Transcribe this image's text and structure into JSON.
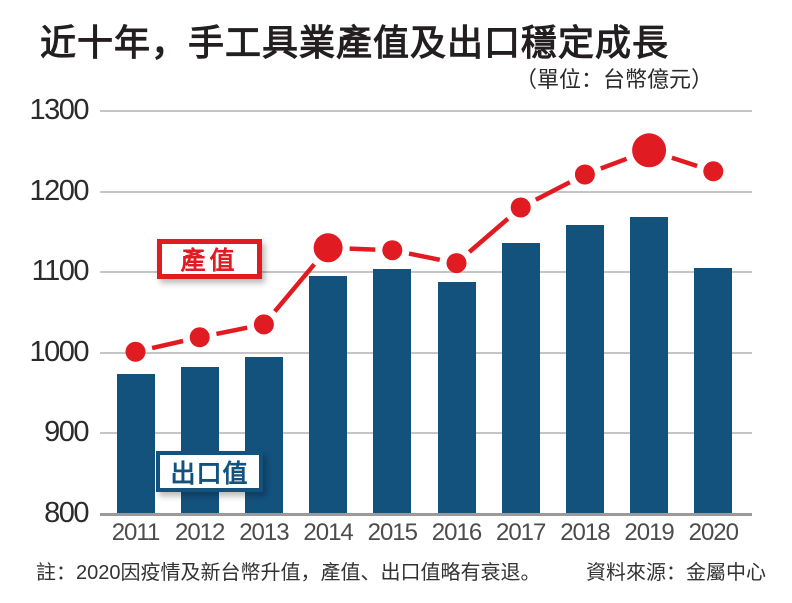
{
  "title": "近十年，手工具業產值及出口穩定成長",
  "subtitle": "（單位：台幣億元）",
  "labels": {
    "production": "產值",
    "export": "出口值"
  },
  "footer": {
    "note": "註：2020因疫情及新台幣升值，產值、出口值略有衰退。",
    "source": "資料來源：金屬中心"
  },
  "colors": {
    "bar": "#14527e",
    "line": "#e11b22",
    "grid": "#c5c5c5",
    "axis": "#9a9a9a",
    "title_text": "#231f20",
    "y_tick_text": "#2b2b2b",
    "x_tick_text": "#4c4c4c"
  },
  "chart_data": {
    "type": "bar",
    "subtype": "bar-and-line-combo",
    "title": "近十年，手工具業產值及出口穩定成長",
    "unit": "台幣億元",
    "categories": [
      "2011",
      "2012",
      "2013",
      "2014",
      "2015",
      "2016",
      "2017",
      "2018",
      "2019",
      "2020"
    ],
    "series": [
      {
        "name": "產值",
        "type": "line",
        "color": "#e11b22",
        "values": [
          1000,
          1018,
          1034,
          1129,
          1126,
          1110,
          1179,
          1220,
          1250,
          1224
        ],
        "emphasized_points": {
          "2014": "medium",
          "2019": "large"
        }
      },
      {
        "name": "出口值",
        "type": "bar",
        "color": "#14527e",
        "values": [
          973,
          981,
          994,
          1094,
          1103,
          1087,
          1135,
          1157,
          1167,
          1104
        ]
      }
    ],
    "ylim": [
      800,
      1300
    ],
    "yticks": [
      800,
      900,
      1000,
      1100,
      1200,
      1300
    ],
    "grid": true,
    "legend_position": "inline-labels",
    "note": "註：2020因疫情及新台幣升值，產值、出口值略有衰退。",
    "source": "資料來源：金屬中心"
  }
}
